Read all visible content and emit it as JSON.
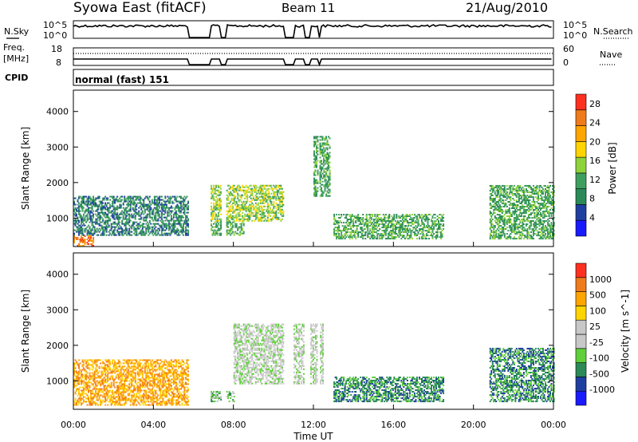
{
  "header": {
    "station": "Syowa East (fitACF)",
    "beam": "Beam 11",
    "date": "21/Aug/2010"
  },
  "noise_panel": {
    "left_label": "N.Sky",
    "right_label": "N.Search",
    "left_ticks": [
      "10^5",
      "10^0"
    ],
    "right_ticks": [
      "10^5",
      "10^0"
    ]
  },
  "freq_panel": {
    "left_label_1": "Freq.",
    "left_label_2": "[MHz]",
    "left_ticks": [
      "18",
      "8"
    ],
    "right_label": "Nave",
    "right_ticks": [
      "60",
      "0"
    ]
  },
  "cpid_panel": {
    "label": "CPID",
    "value": "normal (fast) 151"
  },
  "colors": {
    "power_scale": [
      "#1a1aff",
      "#1f3fa0",
      "#2b8a57",
      "#3f9f5f",
      "#8fd33a",
      "#ffd400",
      "#ffa500",
      "#f07b1c",
      "#ff3020"
    ],
    "velocity_scale": [
      "#1a1aff",
      "#1f3fa0",
      "#2b8a57",
      "#5fd03a",
      "#c8c8c8",
      "#c8c8c8",
      "#ffd400",
      "#ffa500",
      "#f07b1c",
      "#ff3020"
    ],
    "ground_scatter": "#c0c0c0"
  },
  "chart_data": [
    {
      "type": "heatmap",
      "title": "",
      "xlabel": "Time UT",
      "ylabel": "Slant Range [km]",
      "x_ticks": [
        "00:00",
        "04:00",
        "08:00",
        "12:00",
        "16:00",
        "20:00",
        "00:00"
      ],
      "xlim": [
        0,
        24
      ],
      "y_ticks": [
        1000,
        2000,
        3000,
        4000
      ],
      "ylim": [
        200,
        4600
      ],
      "colorbar": {
        "label": "Power [dB]",
        "ticks": [
          4,
          8,
          12,
          16,
          20,
          24,
          28
        ],
        "range": [
          0,
          30
        ]
      },
      "scatter_regions": [
        {
          "t0": 0.0,
          "t1": 5.7,
          "r0": 500,
          "r1": 1600,
          "level": 2
        },
        {
          "t0": 0.0,
          "t1": 1.0,
          "r0": 200,
          "r1": 500,
          "level": 7
        },
        {
          "t0": 6.8,
          "t1": 10.5,
          "r0": 900,
          "r1": 1900,
          "level": 4
        },
        {
          "t0": 6.8,
          "t1": 8.5,
          "r0": 500,
          "r1": 900,
          "level": 3
        },
        {
          "t0": 12.0,
          "t1": 12.8,
          "r0": 1600,
          "r1": 3300,
          "level": 3
        },
        {
          "t0": 13.0,
          "t1": 18.5,
          "r0": 400,
          "r1": 1100,
          "level": 3
        },
        {
          "t0": 20.8,
          "t1": 24.0,
          "r0": 400,
          "r1": 1900,
          "level": 3
        }
      ]
    },
    {
      "type": "heatmap",
      "title": "",
      "xlabel": "Time UT",
      "ylabel": "Slant Range [km]",
      "x_ticks": [
        "00:00",
        "04:00",
        "08:00",
        "12:00",
        "16:00",
        "20:00",
        "00:00"
      ],
      "xlim": [
        0,
        24
      ],
      "y_ticks": [
        1000,
        2000,
        3000,
        4000
      ],
      "ylim": [
        200,
        4600
      ],
      "colorbar": {
        "label": "Velocity [m s^-1]",
        "ticks": [
          1000,
          500,
          100,
          25,
          -25,
          -100,
          -500,
          -1000
        ],
        "range": [
          -1200,
          1200
        ]
      },
      "scatter_regions": [
        {
          "t0": 0.0,
          "t1": 5.7,
          "r0": 300,
          "r1": 1600,
          "level": 7
        },
        {
          "t0": 6.8,
          "t1": 8.0,
          "r0": 400,
          "r1": 700,
          "level": 3
        },
        {
          "t0": 8.0,
          "t1": 12.5,
          "r0": 900,
          "r1": 2600,
          "level": 4
        },
        {
          "t0": 13.0,
          "t1": 18.5,
          "r0": 400,
          "r1": 1100,
          "level": 2
        },
        {
          "t0": 20.8,
          "t1": 24.0,
          "r0": 400,
          "r1": 1900,
          "level": 2
        }
      ]
    }
  ]
}
